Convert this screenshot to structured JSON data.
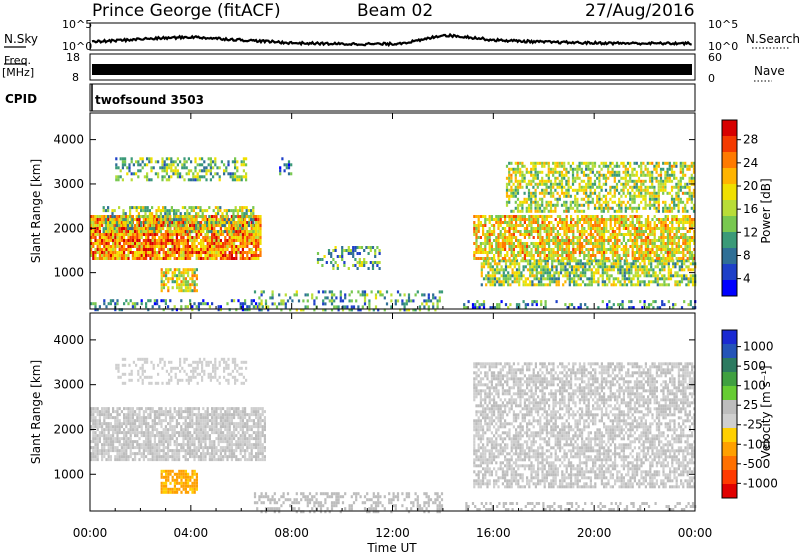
{
  "header": {
    "station": "Prince George (fitACF)",
    "beam": "Beam 02",
    "date": "27/Aug/2016"
  },
  "top_panels": {
    "nsky_label": "N.Sky",
    "freq_label_1": "Freq.",
    "freq_label_2": "[MHz]",
    "cpid_label": "CPID",
    "cpid_value": "twofsound 3503",
    "nsearch_label": "N.Search",
    "nave_label": "Nave",
    "noise_ticks_left": [
      "10^5",
      "10^0"
    ],
    "noise_ticks_right": [
      "10^5",
      "10^0"
    ],
    "freq_ticks": [
      "18",
      "8"
    ],
    "nave_ticks": [
      "60",
      "0"
    ]
  },
  "x_axis": {
    "title": "Time UT",
    "ticks": [
      "00:00",
      "04:00",
      "08:00",
      "12:00",
      "16:00",
      "20:00",
      "00:00"
    ]
  },
  "colorbars": {
    "power": {
      "label": "Power [dB]",
      "ticks": [
        "28",
        "24",
        "20",
        "16",
        "12",
        "8",
        "4"
      ],
      "colors": [
        "#d70000",
        "#f43a00",
        "#ff7a00",
        "#ffb400",
        "#f0e000",
        "#b8dd38",
        "#78c850",
        "#3a9a78",
        "#2f6f96",
        "#1e40c8",
        "#0000ff"
      ]
    },
    "velocity": {
      "label": "Velocity [m s⁻¹]",
      "ticks": [
        "1000",
        "500",
        "100",
        "25",
        "-25",
        "-100",
        "-500",
        "-1000"
      ],
      "colors": [
        "#1a2ad2",
        "#2454b8",
        "#2c7a60",
        "#3fa040",
        "#66cc33",
        "#bdbdbd",
        "#cfcfcf",
        "#ffd000",
        "#ffa000",
        "#ff7000",
        "#ff3a00",
        "#e00000"
      ]
    }
  },
  "chart_data": [
    {
      "type": "heatmap",
      "name": "power",
      "ylabel": "Slant Range [km]",
      "xlabel": "",
      "x_unit": "hours UT",
      "xlim": [
        0,
        24
      ],
      "ylim": [
        180,
        4600
      ],
      "y_ticks": [
        1000,
        2000,
        3000,
        4000
      ],
      "clim": [
        0,
        30
      ],
      "regions": [
        {
          "t0": 0.0,
          "t1": 6.9,
          "r0": 180,
          "r1": 400,
          "value": 8,
          "density": 0.35
        },
        {
          "t0": 6.5,
          "t1": 14.0,
          "r0": 180,
          "r1": 600,
          "value": 10,
          "density": 0.3
        },
        {
          "t0": 14.8,
          "t1": 24.0,
          "r0": 180,
          "r1": 380,
          "value": 8,
          "density": 0.3
        },
        {
          "t0": 0.0,
          "t1": 6.8,
          "r0": 1300,
          "r1": 2300,
          "value": 22,
          "density": 0.9
        },
        {
          "t0": 0.5,
          "t1": 6.5,
          "r0": 1900,
          "r1": 2500,
          "value": 14,
          "density": 0.55
        },
        {
          "t0": 2.8,
          "t1": 4.2,
          "r0": 600,
          "r1": 1100,
          "value": 17,
          "density": 0.75
        },
        {
          "t0": 1.0,
          "t1": 6.2,
          "r0": 3100,
          "r1": 3600,
          "value": 12,
          "density": 0.45
        },
        {
          "t0": 7.5,
          "t1": 8.0,
          "r0": 3200,
          "r1": 3600,
          "value": 8,
          "density": 0.5
        },
        {
          "t0": 9.0,
          "t1": 11.5,
          "r0": 1100,
          "r1": 1600,
          "value": 10,
          "density": 0.3
        },
        {
          "t0": 15.5,
          "t1": 24.0,
          "r0": 700,
          "r1": 1300,
          "value": 14,
          "density": 0.7
        },
        {
          "t0": 15.2,
          "t1": 24.0,
          "r0": 1300,
          "r1": 2300,
          "value": 18,
          "density": 0.75
        },
        {
          "t0": 16.5,
          "t1": 24.0,
          "r0": 2400,
          "r1": 3500,
          "value": 15,
          "density": 0.6
        }
      ]
    },
    {
      "type": "heatmap",
      "name": "velocity",
      "ylabel": "Slant Range [km]",
      "xlabel": "Time UT",
      "x_unit": "hours UT",
      "xlim": [
        0,
        24
      ],
      "ylim": [
        180,
        4600
      ],
      "y_ticks": [
        1000,
        2000,
        3000,
        4000
      ],
      "clim": [
        -1000,
        1000
      ],
      "regions": [
        {
          "t0": 0.0,
          "t1": 6.9,
          "r0": 1300,
          "r1": 2500,
          "value": 0,
          "density": 0.8
        },
        {
          "t0": 1.0,
          "t1": 6.2,
          "r0": 3000,
          "r1": 3600,
          "value": -30,
          "density": 0.35
        },
        {
          "t0": 2.8,
          "t1": 4.2,
          "r0": 600,
          "r1": 1100,
          "value": -350,
          "density": 0.75
        },
        {
          "t0": 6.5,
          "t1": 14.0,
          "r0": 180,
          "r1": 600,
          "value": 60,
          "density": 0.35
        },
        {
          "t0": 15.2,
          "t1": 24.0,
          "r0": 700,
          "r1": 3500,
          "value": 0,
          "density": 0.65
        },
        {
          "t0": 14.8,
          "t1": 24.0,
          "r0": 180,
          "r1": 380,
          "value": 60,
          "density": 0.3
        }
      ]
    },
    {
      "type": "line",
      "name": "noise_sky",
      "x": [
        0,
        2,
        4,
        6,
        8,
        10,
        12,
        13,
        14,
        15,
        16,
        18,
        20,
        22,
        24
      ],
      "y": [
        0.25,
        0.4,
        0.5,
        0.35,
        0.2,
        0.15,
        0.15,
        0.3,
        0.6,
        0.5,
        0.35,
        0.25,
        0.2,
        0.18,
        0.18
      ]
    }
  ]
}
